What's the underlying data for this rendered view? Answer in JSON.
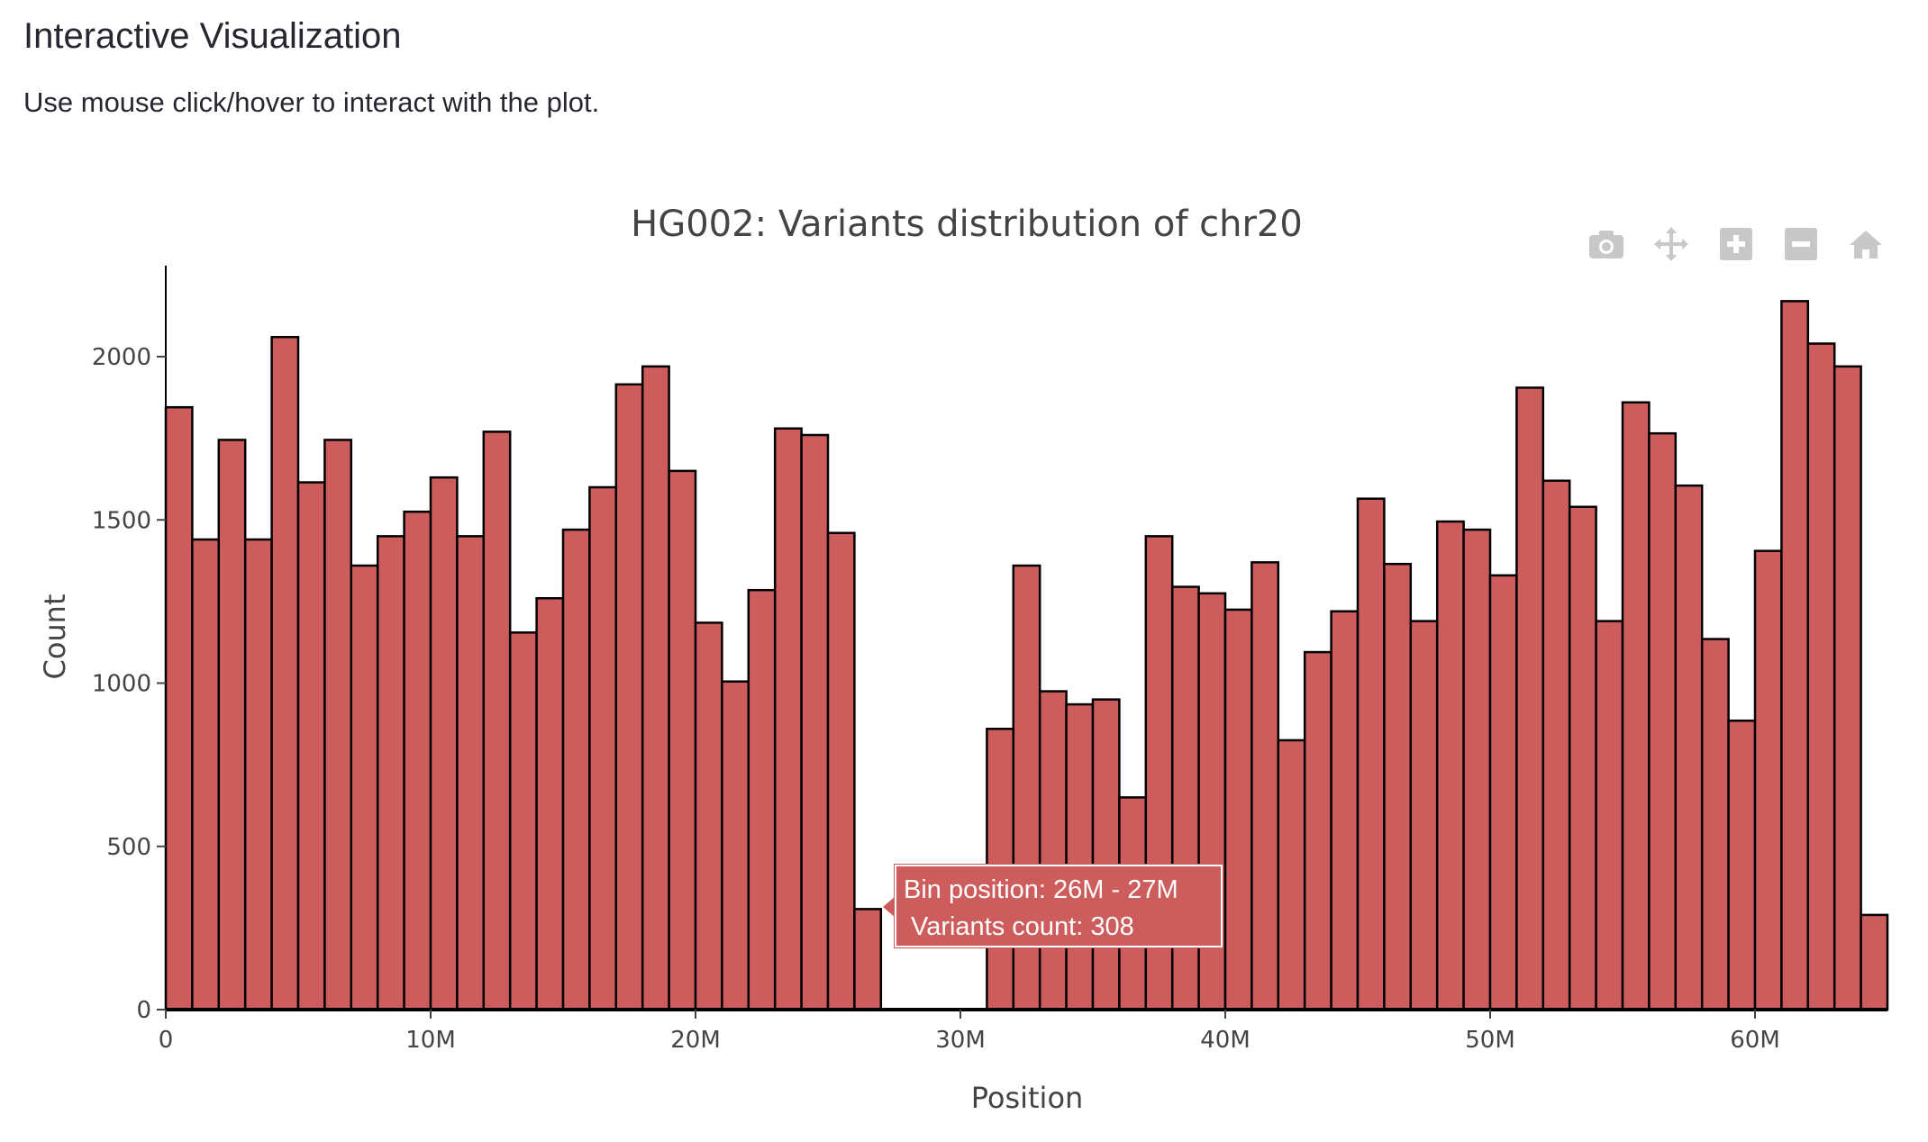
{
  "header": {
    "title": "Interactive Visualization",
    "subtitle": "Use mouse click/hover to interact with the plot."
  },
  "toolbar": {
    "icons": [
      "camera-icon",
      "pan-icon",
      "zoom-in-icon",
      "zoom-out-icon",
      "home-icon"
    ],
    "icon_color": "#c8c8c8"
  },
  "tooltip": {
    "line1": "Bin position: 26M - 27M",
    "line2": "Variants count: 308"
  },
  "chart_data": {
    "type": "bar",
    "title": "HG002: Variants distribution of chr20",
    "xlabel": "Position",
    "ylabel": "Count",
    "bin_width": 1000000,
    "x_start": 0,
    "values": [
      1845,
      1440,
      1745,
      1440,
      2060,
      1615,
      1745,
      1360,
      1450,
      1525,
      1630,
      1450,
      1770,
      1155,
      1260,
      1470,
      1600,
      1915,
      1970,
      1650,
      1185,
      1005,
      1285,
      1780,
      1760,
      1460,
      308,
      0,
      0,
      0,
      0,
      860,
      1360,
      975,
      935,
      950,
      650,
      1450,
      1295,
      1275,
      1225,
      1370,
      825,
      1095,
      1220,
      1565,
      1365,
      1190,
      1495,
      1470,
      1330,
      1905,
      1620,
      1540,
      1190,
      1860,
      1765,
      1605,
      1135,
      885,
      1405,
      2170,
      2040,
      1970,
      290
    ],
    "xlim": [
      0,
      65000000
    ],
    "ylim": [
      0,
      2270
    ],
    "xticks": [
      0,
      10000000,
      20000000,
      30000000,
      40000000,
      50000000,
      60000000
    ],
    "xtick_labels": [
      "0",
      "10M",
      "20M",
      "30M",
      "40M",
      "50M",
      "60M"
    ],
    "yticks": [
      0,
      500,
      1000,
      1500,
      2000
    ],
    "ytick_labels": [
      "0",
      "500",
      "1000",
      "1500",
      "2000"
    ],
    "bar_color": "#cd5c5c",
    "bar_outline": "#000000",
    "grid": false,
    "highlighted_bin": 26
  }
}
